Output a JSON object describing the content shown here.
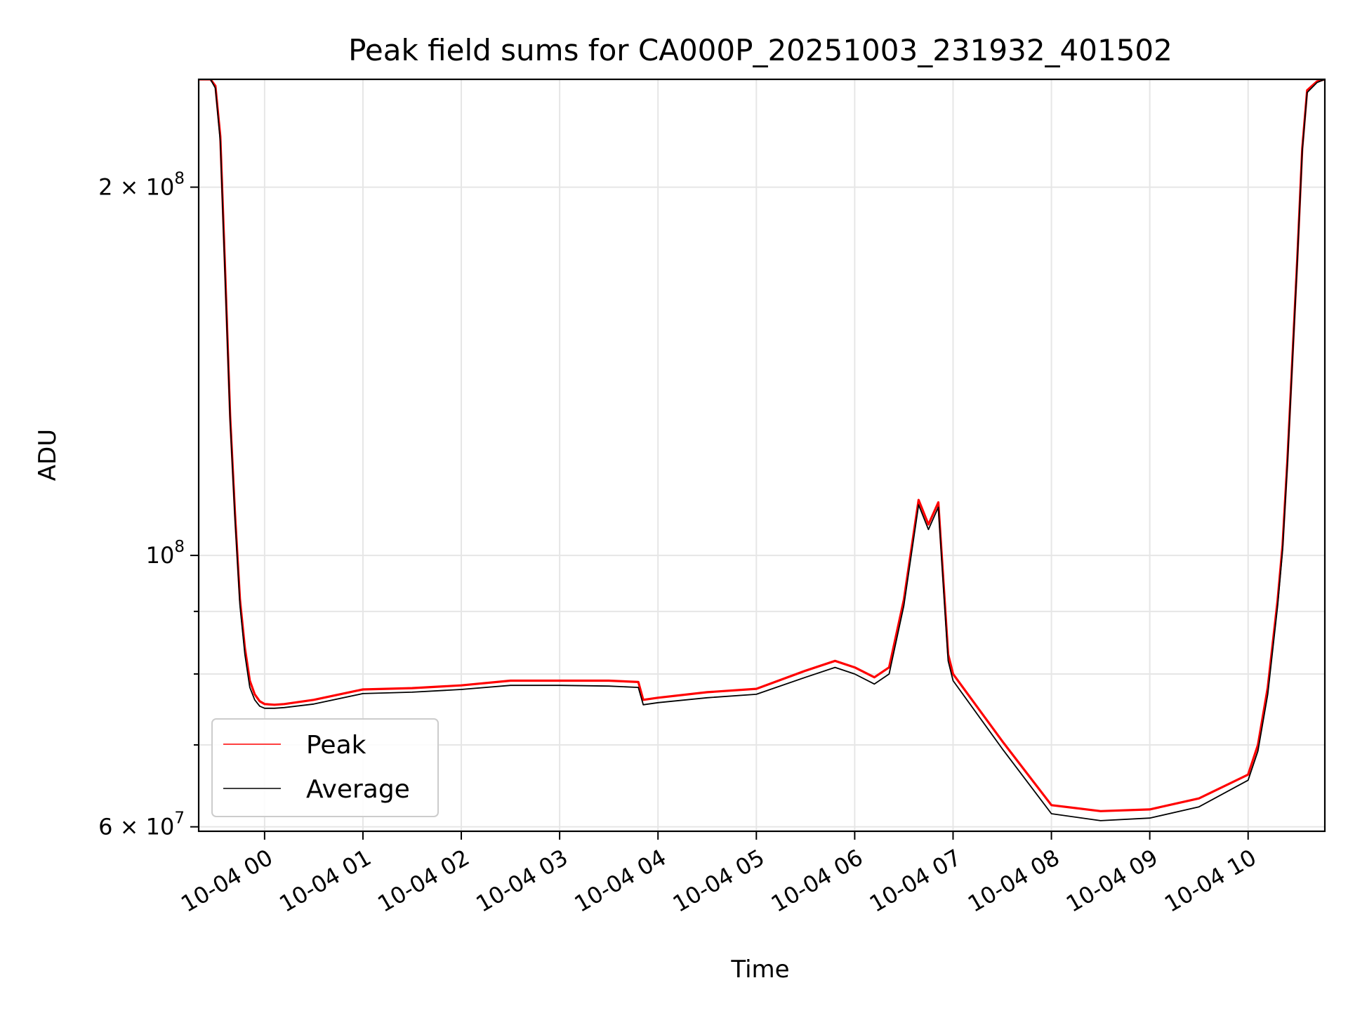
{
  "chart_data": {
    "type": "line",
    "title": "Peak field sums for CA000P_20251003_231932_401502",
    "xlabel": "Time",
    "ylabel": "ADU",
    "yscale": "log",
    "ylim": [
      59500000,
      245000000
    ],
    "xlim": [
      -0.67,
      10.78
    ],
    "grid": true,
    "legend_position": "lower-left",
    "x_unit": "hours since 10-04 00:00",
    "x_ticks": [
      {
        "value": 0,
        "label": "10-04 00"
      },
      {
        "value": 1,
        "label": "10-04 01"
      },
      {
        "value": 2,
        "label": "10-04 02"
      },
      {
        "value": 3,
        "label": "10-04 03"
      },
      {
        "value": 4,
        "label": "10-04 04"
      },
      {
        "value": 5,
        "label": "10-04 05"
      },
      {
        "value": 6,
        "label": "10-04 06"
      },
      {
        "value": 7,
        "label": "10-04 07"
      },
      {
        "value": 8,
        "label": "10-04 08"
      },
      {
        "value": 9,
        "label": "10-04 09"
      },
      {
        "value": 10,
        "label": "10-04 10"
      }
    ],
    "y_major_ticks": [
      {
        "value": 60000000,
        "mantissa": "6",
        "base": "10",
        "exponent": "7"
      },
      {
        "value": 100000000,
        "mantissa": "",
        "base": "10",
        "exponent": "8"
      },
      {
        "value": 200000000,
        "mantissa": "2",
        "base": "10",
        "exponent": "8"
      }
    ],
    "y_minor_grid": [
      70000000,
      80000000,
      90000000
    ],
    "series": [
      {
        "name": "Peak",
        "color": "#ff0000",
        "x": [
          -0.67,
          -0.55,
          -0.5,
          -0.45,
          -0.4,
          -0.35,
          -0.3,
          -0.25,
          -0.2,
          -0.15,
          -0.1,
          -0.05,
          0.0,
          0.1,
          0.2,
          0.5,
          1.0,
          1.5,
          2.0,
          2.5,
          3.0,
          3.5,
          3.8,
          3.85,
          4.0,
          4.5,
          5.0,
          5.5,
          5.8,
          6.0,
          6.2,
          6.35,
          6.5,
          6.65,
          6.75,
          6.85,
          6.95,
          7.0,
          7.5,
          8.0,
          8.5,
          9.0,
          9.5,
          10.0,
          10.1,
          10.2,
          10.3,
          10.35,
          10.4,
          10.45,
          10.5,
          10.55,
          10.6,
          10.7,
          10.78
        ],
        "values": [
          245000000,
          245000000,
          242000000,
          220000000,
          170000000,
          130000000,
          108000000,
          92000000,
          84000000,
          79000000,
          77000000,
          76000000,
          75600000,
          75500000,
          75600000,
          76200000,
          77700000,
          77900000,
          78300000,
          79000000,
          79000000,
          79000000,
          78800000,
          76200000,
          76500000,
          77300000,
          77800000,
          80500000,
          82000000,
          81000000,
          79500000,
          81000000,
          92000000,
          111000000,
          106000000,
          110500000,
          83000000,
          80000000,
          70500000,
          62500000,
          61800000,
          62000000,
          63300000,
          66200000,
          70000000,
          78000000,
          92000000,
          102000000,
          120000000,
          145000000,
          175000000,
          215000000,
          240000000,
          244000000,
          245000000
        ]
      },
      {
        "name": "Average",
        "color": "#000000",
        "x": [
          -0.67,
          -0.55,
          -0.5,
          -0.45,
          -0.4,
          -0.35,
          -0.3,
          -0.25,
          -0.2,
          -0.15,
          -0.1,
          -0.05,
          0.0,
          0.1,
          0.2,
          0.5,
          1.0,
          1.5,
          2.0,
          2.5,
          3.0,
          3.5,
          3.8,
          3.85,
          4.0,
          4.5,
          5.0,
          5.5,
          5.8,
          6.0,
          6.2,
          6.35,
          6.5,
          6.65,
          6.75,
          6.85,
          6.95,
          7.0,
          7.5,
          8.0,
          8.5,
          9.0,
          9.5,
          10.0,
          10.1,
          10.2,
          10.3,
          10.35,
          10.4,
          10.45,
          10.5,
          10.55,
          10.6,
          10.7,
          10.78
        ],
        "values": [
          245000000,
          245000000,
          241000000,
          218000000,
          168000000,
          129000000,
          107000000,
          91000000,
          83000000,
          78000000,
          76200000,
          75300000,
          75000000,
          75000000,
          75100000,
          75600000,
          77100000,
          77300000,
          77700000,
          78300000,
          78300000,
          78200000,
          78000000,
          75500000,
          75800000,
          76500000,
          77000000,
          79500000,
          81000000,
          80000000,
          78500000,
          80000000,
          91000000,
          110000000,
          105000000,
          109500000,
          82000000,
          79000000,
          69500000,
          61500000,
          60700000,
          61000000,
          62300000,
          65500000,
          69200000,
          77000000,
          91000000,
          101000000,
          119000000,
          144000000,
          174000000,
          214000000,
          239000000,
          243500000,
          245000000
        ]
      }
    ]
  }
}
